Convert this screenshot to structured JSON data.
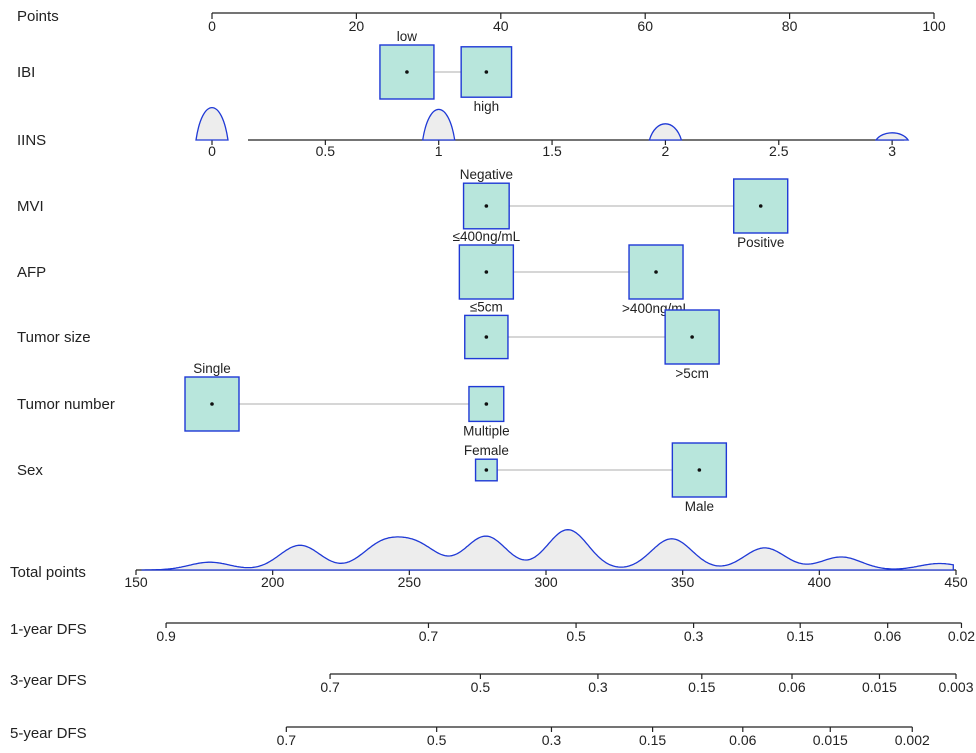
{
  "chart_data": {
    "type": "nomogram",
    "colors": {
      "box_fill": "#b8e6dc",
      "box_stroke": "#1f39d6",
      "density_stroke": "#1f39d6",
      "density_fill": "#ededed",
      "connector": "#c8c8c8",
      "axis": "#222222"
    },
    "points_axis": {
      "label": "Points",
      "min": 0,
      "max": 100,
      "ticks": [
        "0",
        "20",
        "40",
        "60",
        "80",
        "100"
      ]
    },
    "variables": [
      {
        "id": "ibi",
        "label": "IBI",
        "levels": [
          {
            "name": "low",
            "points": 27,
            "size": 0.45
          },
          {
            "name": "high",
            "points": 38,
            "size": 0.42
          }
        ]
      },
      {
        "id": "iins",
        "label": "IINS",
        "continuous": true,
        "scale": {
          "ticks": [
            "0",
            "0.5",
            "1",
            "1.5",
            "2",
            "2.5",
            "3"
          ],
          "points_per_unit": 31.4
        },
        "density": [
          {
            "value": 0,
            "height": 0.9
          },
          {
            "value": 1,
            "height": 0.85
          },
          {
            "value": 2,
            "height": 0.45
          },
          {
            "value": 3,
            "height": 0.2
          }
        ]
      },
      {
        "id": "mvi",
        "label": "MVI",
        "levels": [
          {
            "name": "Negative",
            "points": 38,
            "size": 0.38
          },
          {
            "name": "Positive",
            "points": 76,
            "size": 0.45
          }
        ]
      },
      {
        "id": "afp",
        "label": "AFP",
        "levels": [
          {
            "name": "≤400ng/mL",
            "points": 38,
            "size": 0.45
          },
          {
            "name": ">400ng/mL",
            "points": 61.5,
            "size": 0.45
          }
        ]
      },
      {
        "id": "tumor_size",
        "label": "Tumor size",
        "levels": [
          {
            "name": "≤5cm",
            "points": 38,
            "size": 0.36
          },
          {
            "name": ">5cm",
            "points": 66.5,
            "size": 0.45
          }
        ]
      },
      {
        "id": "tumor_number",
        "label": "Tumor number",
        "levels": [
          {
            "name": "Single",
            "points": 0,
            "size": 0.45
          },
          {
            "name": "Multiple",
            "points": 38,
            "size": 0.29
          }
        ]
      },
      {
        "id": "sex",
        "label": "Sex",
        "levels": [
          {
            "name": "Female",
            "points": 38,
            "size": 0.18
          },
          {
            "name": "Male",
            "points": 67.5,
            "size": 0.45
          }
        ]
      }
    ],
    "total_points": {
      "label": "Total points",
      "min": 150,
      "max": 450,
      "ticks": [
        "150",
        "200",
        "250",
        "300",
        "350",
        "400",
        "450"
      ],
      "density_peaks": [
        {
          "at": 177,
          "height": 0.3
        },
        {
          "at": 210,
          "height": 0.95
        },
        {
          "at": 240,
          "height": 0.95
        },
        {
          "at": 253,
          "height": 0.9
        },
        {
          "at": 278,
          "height": 1.3
        },
        {
          "at": 308,
          "height": 1.55
        },
        {
          "at": 346,
          "height": 1.2
        },
        {
          "at": 380,
          "height": 0.85
        },
        {
          "at": 408,
          "height": 0.5
        },
        {
          "at": 444,
          "height": 0.25
        }
      ]
    },
    "dfs_axes": [
      {
        "label": "1-year DFS",
        "ticks": [
          {
            "text": "0.9",
            "at": 161
          },
          {
            "text": "0.7",
            "at": 257
          },
          {
            "text": "0.5",
            "at": 311
          },
          {
            "text": "0.3",
            "at": 354
          },
          {
            "text": "0.15",
            "at": 393
          },
          {
            "text": "0.06",
            "at": 425
          },
          {
            "text": "0.02",
            "at": 452
          }
        ]
      },
      {
        "label": "3-year DFS",
        "ticks": [
          {
            "text": "0.7",
            "at": 221
          },
          {
            "text": "0.5",
            "at": 276
          },
          {
            "text": "0.3",
            "at": 319
          },
          {
            "text": "0.15",
            "at": 357
          },
          {
            "text": "0.06",
            "at": 390
          },
          {
            "text": "0.015",
            "at": 422
          },
          {
            "text": "0.003",
            "at": 450
          }
        ]
      },
      {
        "label": "5-year DFS",
        "ticks": [
          {
            "text": "0.7",
            "at": 205
          },
          {
            "text": "0.5",
            "at": 260
          },
          {
            "text": "0.3",
            "at": 302
          },
          {
            "text": "0.15",
            "at": 339
          },
          {
            "text": "0.06",
            "at": 372
          },
          {
            "text": "0.015",
            "at": 404
          },
          {
            "text": "0.002",
            "at": 434
          }
        ]
      }
    ]
  }
}
